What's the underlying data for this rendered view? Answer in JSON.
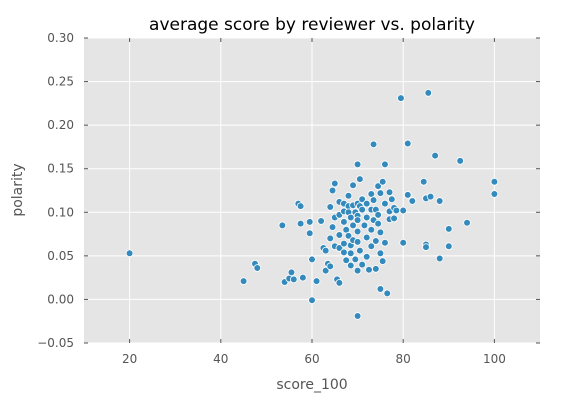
{
  "chart_data": {
    "type": "scatter",
    "title": "average score by reviewer vs. polarity",
    "xlabel": "score_100",
    "ylabel": "polarity",
    "xlim": [
      10,
      110
    ],
    "ylim": [
      -0.05,
      0.3
    ],
    "xticks": [
      20,
      40,
      60,
      80,
      100
    ],
    "yticks": [
      -0.05,
      0.0,
      0.05,
      0.1,
      0.15,
      0.2,
      0.25,
      0.3
    ],
    "xtick_labels": [
      "20",
      "40",
      "60",
      "80",
      "100"
    ],
    "ytick_labels": [
      "−0.05",
      "0.00",
      "0.05",
      "0.10",
      "0.15",
      "0.20",
      "0.25",
      "0.30"
    ],
    "grid": true,
    "background_color": "#e5e5e5",
    "grid_color": "#ffffff",
    "marker_color": "#348abd",
    "points": [
      [
        20,
        0.053
      ],
      [
        45,
        0.021
      ],
      [
        47.5,
        0.041
      ],
      [
        48,
        0.036
      ],
      [
        53.5,
        0.085
      ],
      [
        54,
        0.02
      ],
      [
        55,
        0.024
      ],
      [
        55.5,
        0.031
      ],
      [
        56,
        0.023
      ],
      [
        57,
        0.11
      ],
      [
        57.5,
        0.107
      ],
      [
        57.5,
        0.087
      ],
      [
        58,
        0.025
      ],
      [
        59.5,
        0.089
      ],
      [
        59.5,
        0.076
      ],
      [
        60,
        0.046
      ],
      [
        60,
        -0.001
      ],
      [
        61,
        0.021
      ],
      [
        62,
        0.09
      ],
      [
        62.5,
        0.059
      ],
      [
        63,
        0.056
      ],
      [
        63,
        0.033
      ],
      [
        63.5,
        0.041
      ],
      [
        64,
        0.106
      ],
      [
        64,
        0.07
      ],
      [
        64,
        0.038
      ],
      [
        64.5,
        0.125
      ],
      [
        64.5,
        0.083
      ],
      [
        65,
        0.133
      ],
      [
        65,
        0.094
      ],
      [
        65,
        0.061
      ],
      [
        65.5,
        0.023
      ],
      [
        66,
        0.112
      ],
      [
        66,
        0.097
      ],
      [
        66,
        0.074
      ],
      [
        66,
        0.059
      ],
      [
        66,
        0.019
      ],
      [
        67,
        0.11
      ],
      [
        67,
        0.101
      ],
      [
        67,
        0.089
      ],
      [
        67,
        0.064
      ],
      [
        67,
        0.054
      ],
      [
        67.5,
        0.08
      ],
      [
        67.5,
        0.045
      ],
      [
        68,
        0.119
      ],
      [
        68,
        0.107
      ],
      [
        68,
        0.1
      ],
      [
        68,
        0.073
      ],
      [
        68.5,
        0.094
      ],
      [
        68.5,
        0.062
      ],
      [
        68.5,
        0.053
      ],
      [
        68.5,
        0.039
      ],
      [
        69,
        0.131
      ],
      [
        69,
        0.108
      ],
      [
        69,
        0.085
      ],
      [
        69,
        0.068
      ],
      [
        69.5,
        0.1
      ],
      [
        69.5,
        0.046
      ],
      [
        70,
        0.155
      ],
      [
        70,
        0.11
      ],
      [
        70,
        0.096
      ],
      [
        70,
        0.091
      ],
      [
        70,
        0.078
      ],
      [
        70,
        0.066
      ],
      [
        70,
        0.033
      ],
      [
        70,
        -0.019
      ],
      [
        70.5,
        0.138
      ],
      [
        70.5,
        0.107
      ],
      [
        70.5,
        0.056
      ],
      [
        71,
        0.115
      ],
      [
        71,
        0.103
      ],
      [
        71,
        0.04
      ],
      [
        71.5,
        0.085
      ],
      [
        72,
        0.11
      ],
      [
        72,
        0.094
      ],
      [
        72,
        0.071
      ],
      [
        72,
        0.049
      ],
      [
        72.5,
        0.034
      ],
      [
        73,
        0.121
      ],
      [
        73,
        0.103
      ],
      [
        73,
        0.08
      ],
      [
        73,
        0.061
      ],
      [
        73.5,
        0.178
      ],
      [
        73.5,
        0.114
      ],
      [
        73.5,
        0.091
      ],
      [
        74,
        0.103
      ],
      [
        74,
        0.067
      ],
      [
        74,
        0.035
      ],
      [
        74.5,
        0.13
      ],
      [
        74.5,
        0.097
      ],
      [
        74.5,
        0.087
      ],
      [
        75,
        0.122
      ],
      [
        75,
        0.077
      ],
      [
        75,
        0.053
      ],
      [
        75,
        0.012
      ],
      [
        75.5,
        0.135
      ],
      [
        75.5,
        0.044
      ],
      [
        76,
        0.155
      ],
      [
        76,
        0.11
      ],
      [
        76,
        0.065
      ],
      [
        76.5,
        0.007
      ],
      [
        77,
        0.123
      ],
      [
        77,
        0.101
      ],
      [
        77,
        0.092
      ],
      [
        77.5,
        0.115
      ],
      [
        78,
        0.105
      ],
      [
        78,
        0.093
      ],
      [
        78.5,
        0.102
      ],
      [
        79.5,
        0.231
      ],
      [
        80,
        0.065
      ],
      [
        80,
        0.102
      ],
      [
        81,
        0.179
      ],
      [
        81,
        0.12
      ],
      [
        82,
        0.113
      ],
      [
        84.5,
        0.135
      ],
      [
        85,
        0.116
      ],
      [
        85,
        0.063
      ],
      [
        85,
        0.06
      ],
      [
        85.5,
        0.237
      ],
      [
        86,
        0.118
      ],
      [
        87,
        0.165
      ],
      [
        88,
        0.113
      ],
      [
        88,
        0.047
      ],
      [
        90,
        0.081
      ],
      [
        90,
        0.061
      ],
      [
        92.5,
        0.159
      ],
      [
        94,
        0.088
      ],
      [
        100,
        0.135
      ],
      [
        100,
        0.121
      ]
    ]
  }
}
